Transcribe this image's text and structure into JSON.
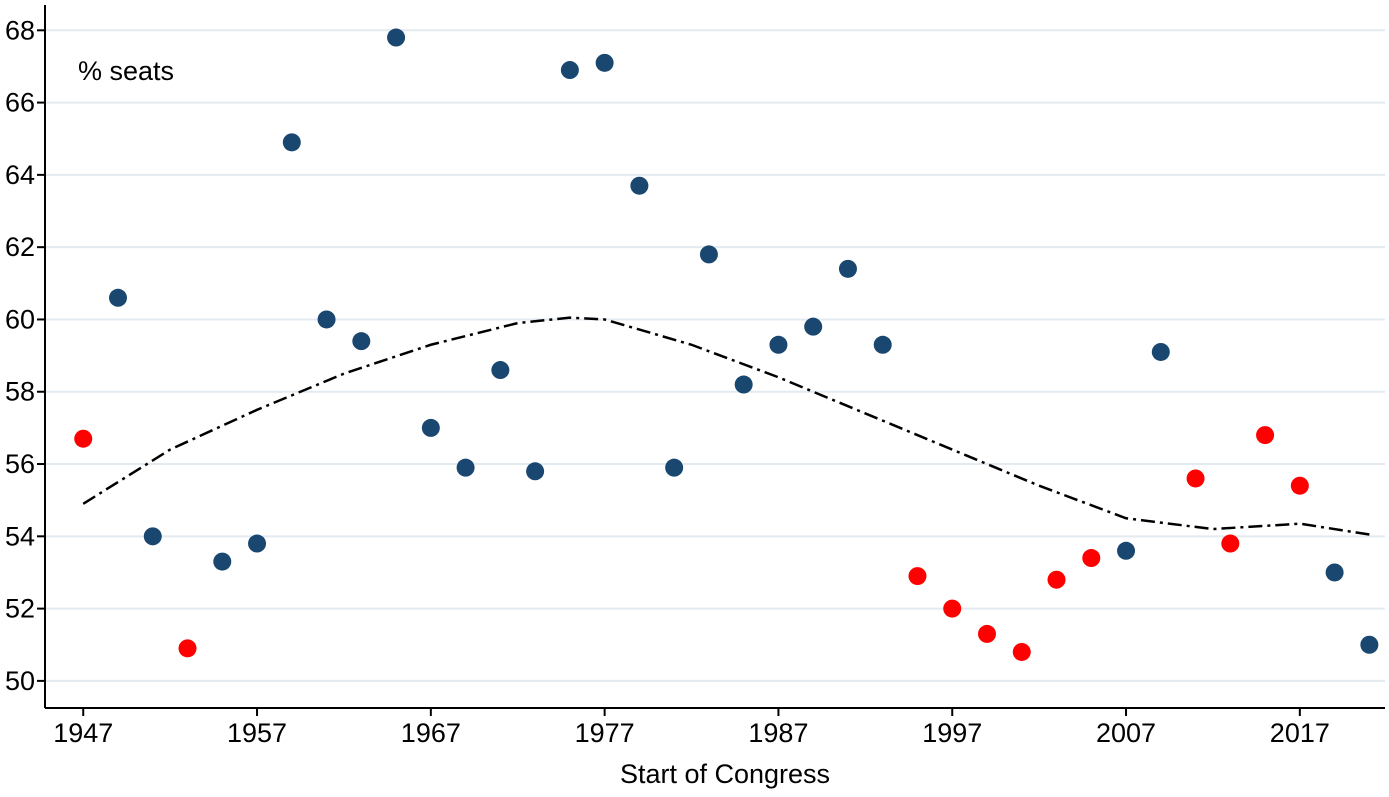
{
  "chart_data": {
    "type": "scatter",
    "annotation": "% seats",
    "x_label": "Start of Congress",
    "xlim": [
      1944.8,
      2021.9
    ],
    "xticks": [
      1947,
      1957,
      1967,
      1977,
      1987,
      1997,
      2007,
      2017
    ],
    "ylim": [
      49.25,
      68.7
    ],
    "yticks": [
      50,
      52,
      54,
      56,
      58,
      60,
      62,
      64,
      66,
      68
    ],
    "grid": true,
    "series": [
      {
        "type": "scatter",
        "color": "#1a476f",
        "x": [
          1949,
          1951,
          1955,
          1957,
          1959,
          1961,
          1963,
          1965,
          1967,
          1969,
          1971,
          1973,
          1975,
          1977,
          1979,
          1981,
          1983,
          1985,
          1987,
          1989,
          1991,
          1993,
          2007,
          2009,
          2019,
          2021
        ],
        "values": [
          60.6,
          54.0,
          53.3,
          53.8,
          64.9,
          60.0,
          59.4,
          67.8,
          57.0,
          55.9,
          58.6,
          55.8,
          66.9,
          67.1,
          63.7,
          55.9,
          61.8,
          58.2,
          59.3,
          59.8,
          61.4,
          59.3,
          53.6,
          59.1,
          53.0,
          51.0
        ]
      },
      {
        "type": "scatter",
        "color": "#ff0000",
        "x": [
          1947,
          1953,
          1995,
          1997,
          1999,
          2001,
          2003,
          2005,
          2011,
          2013,
          2015,
          2017
        ],
        "values": [
          56.7,
          50.9,
          52.9,
          52.0,
          51.3,
          50.8,
          52.8,
          53.4,
          55.6,
          53.8,
          56.8,
          55.4
        ]
      },
      {
        "type": "line",
        "color": "#000000",
        "style": "dashdot",
        "x": [
          1947,
          1952,
          1957,
          1962,
          1967,
          1972,
          1975,
          1977,
          1982,
          1987,
          1992,
          1997,
          2002,
          2007,
          2012,
          2017,
          2021
        ],
        "values": [
          54.9,
          56.4,
          57.5,
          58.5,
          59.3,
          59.9,
          60.05,
          60.0,
          59.3,
          58.4,
          57.4,
          56.4,
          55.4,
          54.5,
          54.2,
          54.35,
          54.05
        ]
      }
    ]
  }
}
